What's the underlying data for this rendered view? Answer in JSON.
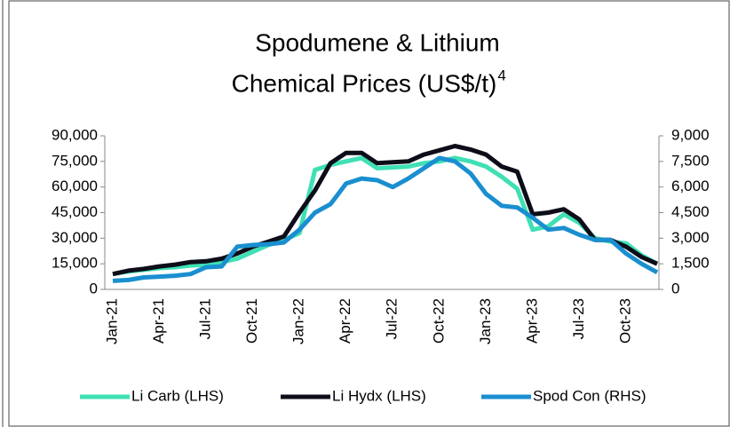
{
  "chart_data": {
    "type": "line",
    "title": [
      "Spodumene & Lithium",
      "Chemical Prices (US$/t)"
    ],
    "title_superscript": "4",
    "categories": [
      "Jan-21",
      null,
      null,
      "Apr-21",
      null,
      null,
      "Jul-21",
      null,
      null,
      "Oct-21",
      null,
      null,
      "Jan-22",
      null,
      null,
      "Apr-22",
      null,
      null,
      "Jul-22",
      null,
      null,
      "Oct-22",
      null,
      null,
      "Jan-23",
      null,
      null,
      "Apr-23",
      null,
      null,
      "Jul-23",
      null,
      null,
      "Oct-23",
      null,
      null
    ],
    "series": [
      {
        "name": "Li Carb (LHS)",
        "color": "#3fe0b4",
        "values": [
          9000,
          10500,
          11500,
          12500,
          13000,
          14000,
          14500,
          16000,
          18000,
          22000,
          26000,
          29000,
          33000,
          70000,
          73000,
          75000,
          77000,
          71000,
          71500,
          72000,
          74000,
          75000,
          77000,
          75000,
          72000,
          66000,
          59000,
          35000,
          37000,
          44000,
          39000,
          30000,
          28000,
          27000,
          20000,
          15000
        ]
      },
      {
        "name": "Li Hydx (LHS)",
        "color": "#0d0d1a",
        "values": [
          9000,
          11000,
          12000,
          13500,
          14500,
          16000,
          16500,
          18000,
          21000,
          25000,
          28000,
          31000,
          45000,
          58000,
          74000,
          80000,
          80000,
          74000,
          74500,
          75000,
          79000,
          81500,
          84000,
          82000,
          79000,
          72000,
          69000,
          44000,
          45000,
          47000,
          41000,
          29000,
          29000,
          25000,
          19000,
          15000
        ]
      },
      {
        "name": "Spod Con (RHS)",
        "color": "#1a8fd0",
        "axis": "y2",
        "values": [
          500,
          550,
          700,
          750,
          800,
          900,
          1300,
          1350,
          2500,
          2600,
          2650,
          2750,
          3500,
          4500,
          5000,
          6200,
          6500,
          6400,
          6000,
          6500,
          7100,
          7700,
          7500,
          6800,
          5600,
          4900,
          4800,
          4200,
          3500,
          3600,
          3200,
          2900,
          2900,
          2100,
          1500,
          1000
        ]
      }
    ],
    "ylim": [
      0,
      90000
    ],
    "yticks": [
      0,
      {
        "value": 15000,
        "label": "15,000"
      },
      {
        "value": 30000,
        "label": "30,000"
      },
      {
        "value": 45000,
        "label": "45,000"
      },
      {
        "value": 60000,
        "label": "60,000"
      },
      {
        "value": 75000,
        "label": "75,000"
      },
      {
        "value": 90000,
        "label": "90,000"
      }
    ],
    "y2lim": [
      0,
      9000
    ],
    "y2ticks": [
      0,
      {
        "value": 1500,
        "label": "1,500"
      },
      {
        "value": 3000,
        "label": "3,000"
      },
      {
        "value": 4500,
        "label": "4,500"
      },
      {
        "value": 6000,
        "label": "6,000"
      },
      {
        "value": 7500,
        "label": "7,500"
      },
      {
        "value": 9000,
        "label": "9,000"
      }
    ],
    "legend": "bottom"
  }
}
